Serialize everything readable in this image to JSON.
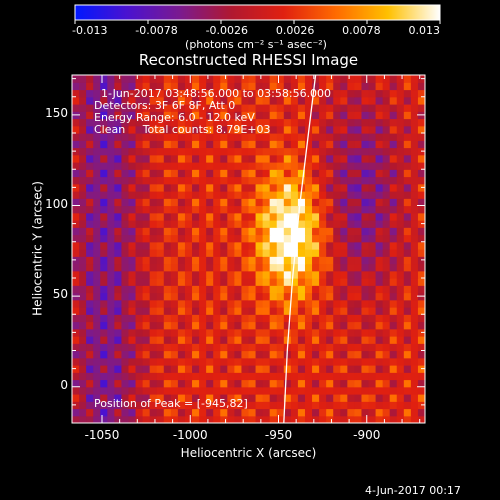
{
  "colorbar": {
    "ticks": [
      "-0.013",
      "-0.0078",
      "-0.0026",
      "0.0026",
      "0.0078",
      "0.013"
    ],
    "unit_label": "(photons cm⁻² s⁻¹ asec⁻²)",
    "range": [
      -0.013,
      0.013
    ],
    "colors": [
      "#0018ff",
      "#4a12d0",
      "#7a1a90",
      "#b01830",
      "#e02010",
      "#ff6a00",
      "#ffc000",
      "#ffffff"
    ]
  },
  "info": {
    "time_range": "1-Jun-2017 03:48:56.000 to 03:58:56.000",
    "detectors": "Detectors: 3F 6F 8F, Att 0",
    "energy": "Energy Range: 6.0 - 12.0 keV",
    "clean": "Clean     Total counts: 8.79E+03",
    "peak": "Position of Peak = [-945,82]"
  },
  "footer": {
    "date": "4-Jun-2017 00:17"
  },
  "chart_data": {
    "type": "heatmap",
    "title": "Reconstructed RHESSI Image",
    "xlabel": "Heliocentric X (arcsec)",
    "ylabel": "Heliocentric Y (arcsec)",
    "xlim": [
      -1067,
      -867
    ],
    "ylim": [
      -20,
      172
    ],
    "x_ticks": [
      -1050,
      -1000,
      -950,
      -900
    ],
    "y_ticks": [
      0,
      50,
      100,
      150
    ],
    "peak": {
      "x": -945,
      "y": 82,
      "value": 0.013
    },
    "limb": [
      [
        -947,
        -20
      ],
      [
        -945,
        20
      ],
      [
        -942,
        60
      ],
      [
        -938,
        100
      ],
      [
        -933,
        140
      ],
      [
        -929,
        172
      ]
    ]
  }
}
